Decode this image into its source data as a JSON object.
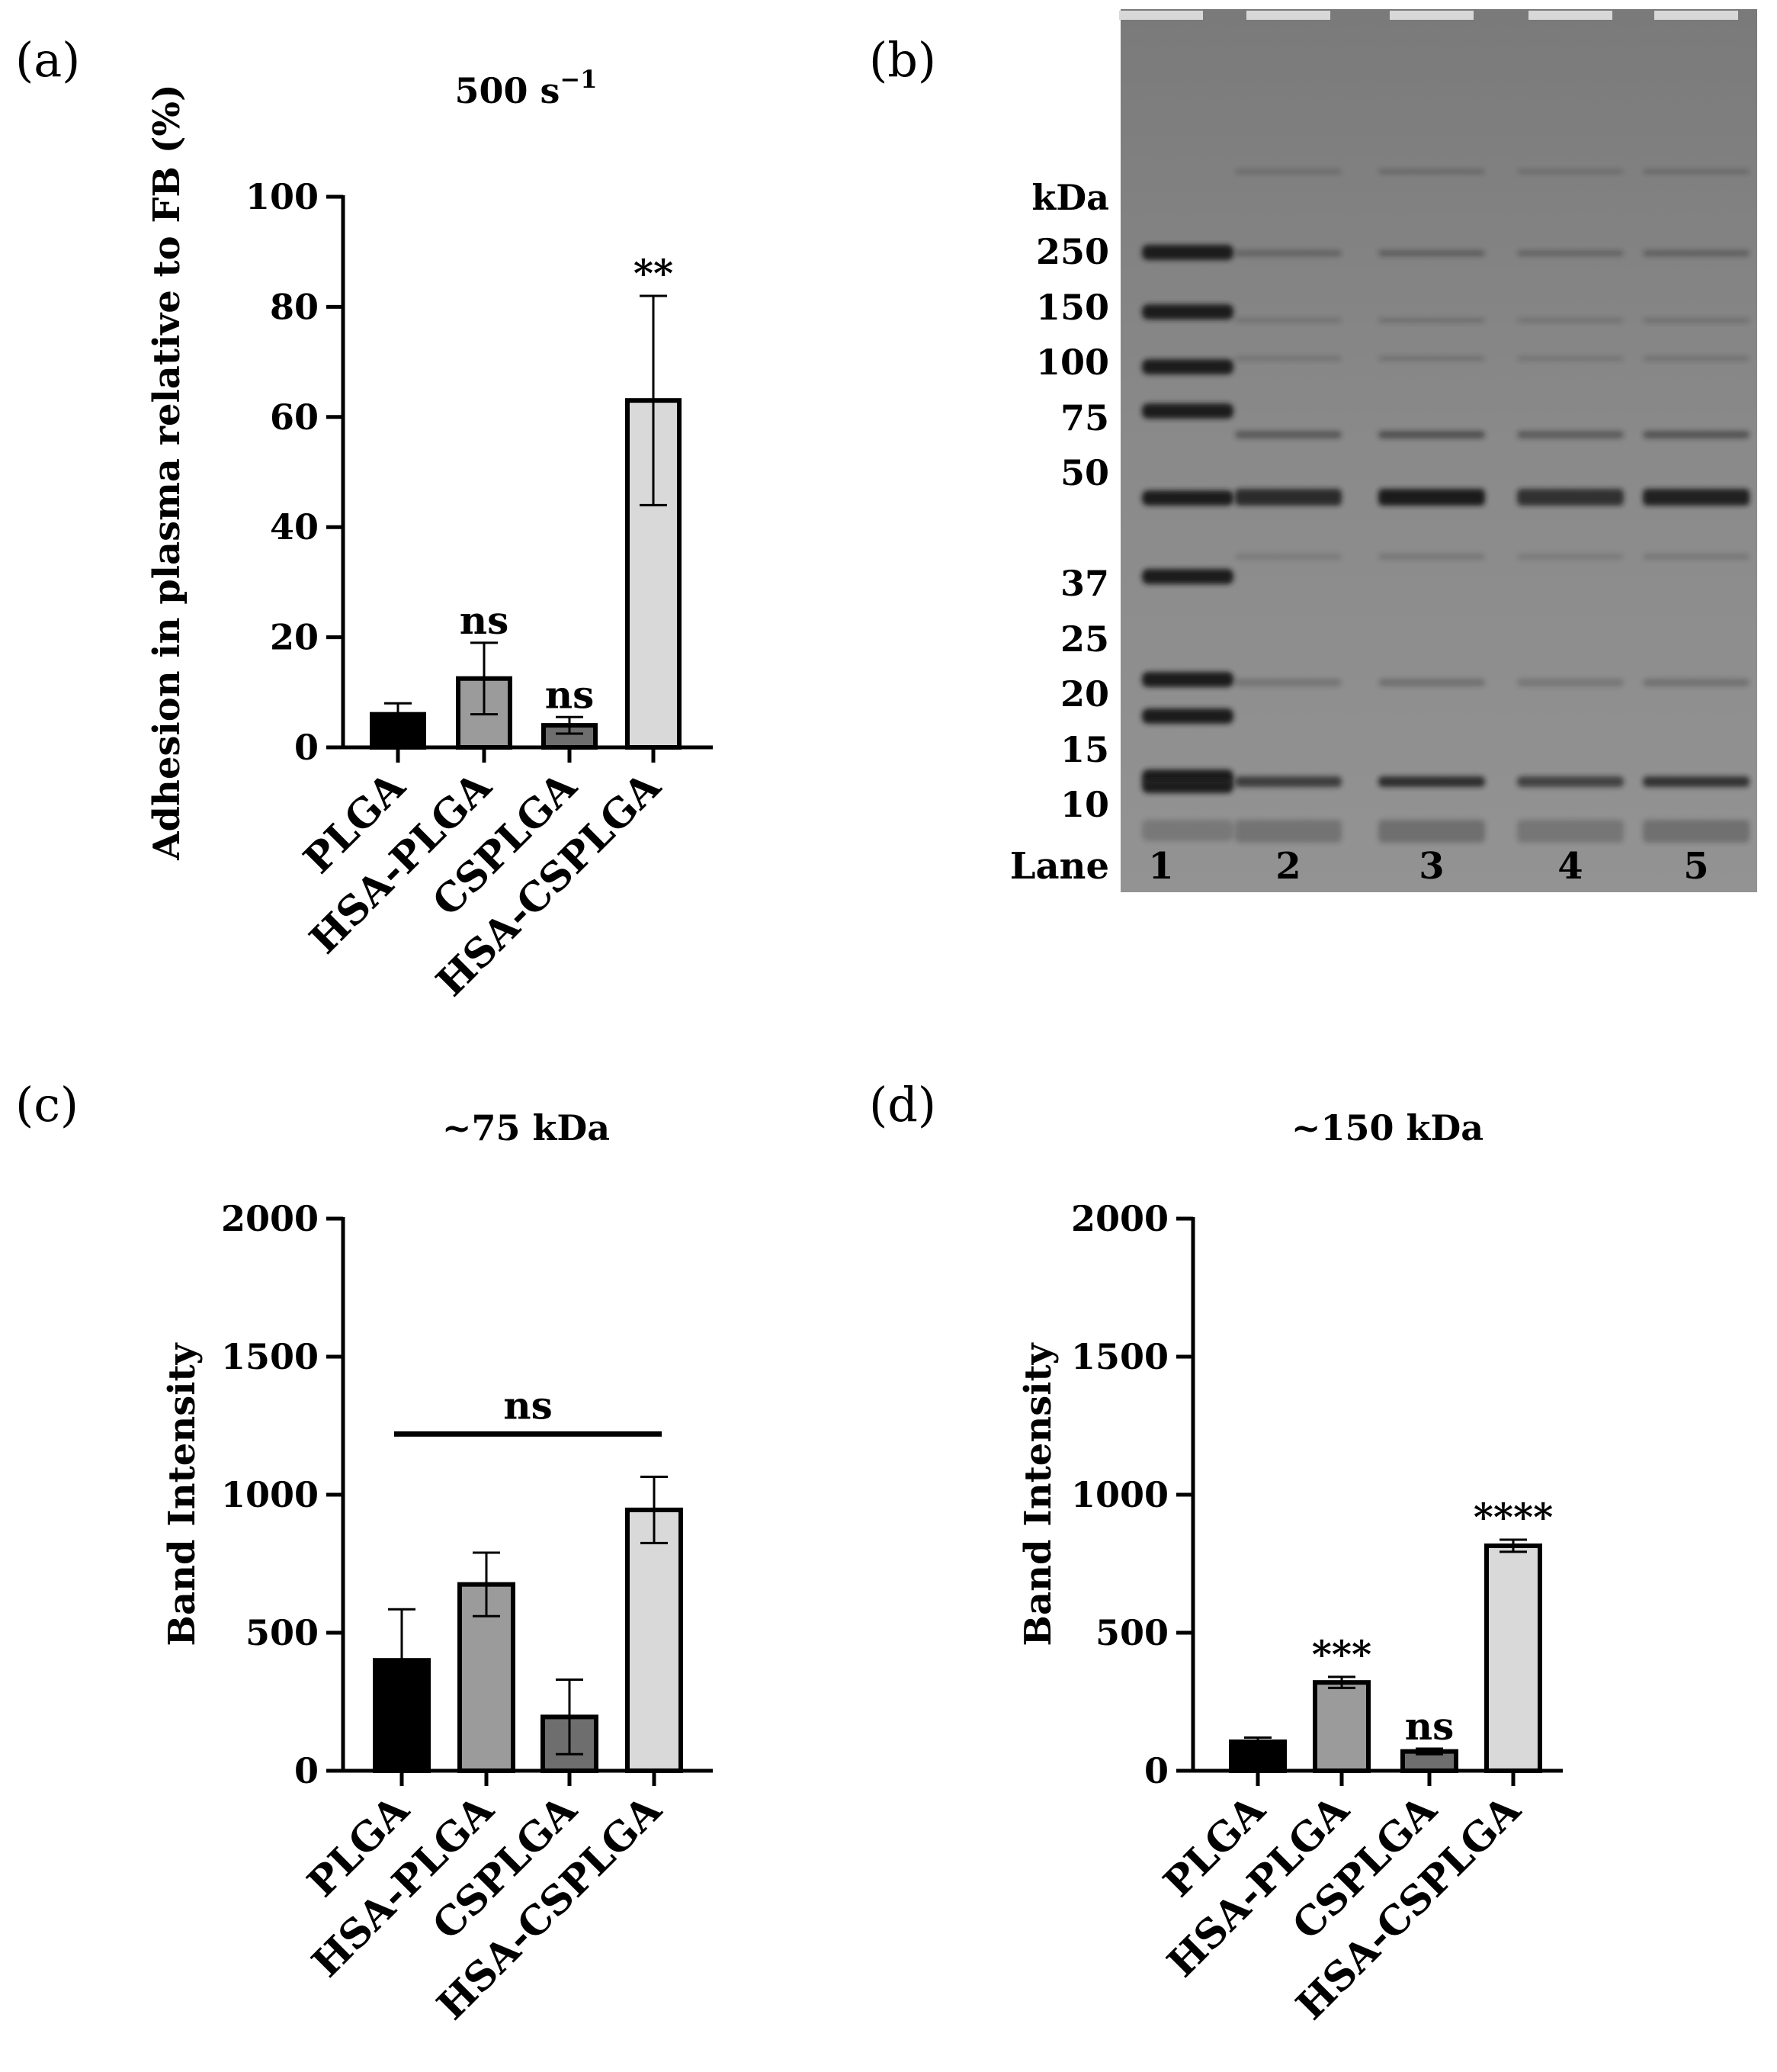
{
  "chart_data": [
    {
      "panel": "(a)",
      "type": "bar",
      "title": "500 s",
      "title_sup": "−1",
      "ylabel": "Adhesion in plasma relative to FB (%)",
      "ylim": [
        0,
        100
      ],
      "yticks": [
        0,
        20,
        40,
        60,
        80,
        100
      ],
      "categories": [
        "PLGA",
        "HSA-PLGA",
        "CSPLGA",
        "HSA-CSPLGA"
      ],
      "values": [
        6,
        12.5,
        4,
        63
      ],
      "errors": [
        2,
        6.5,
        1.5,
        19
      ],
      "colors": [
        "#000000",
        "#9b9b9b",
        "#6e6e6e",
        "#d9d9d9"
      ],
      "significance": [
        "",
        "ns",
        "ns",
        "**"
      ]
    },
    {
      "panel": "(c)",
      "type": "bar",
      "title": "~75 kDa",
      "ylabel": "Band Intensity",
      "ylim": [
        0,
        2000
      ],
      "yticks": [
        0,
        500,
        1000,
        1500,
        2000
      ],
      "categories": [
        "PLGA",
        "HSA-PLGA",
        "CSPLGA",
        "HSA-CSPLGA"
      ],
      "values": [
        400,
        675,
        195,
        945
      ],
      "errors": [
        185,
        115,
        135,
        120
      ],
      "colors": [
        "#000000",
        "#9b9b9b",
        "#6e6e6e",
        "#d9d9d9"
      ],
      "significance": [
        "",
        "",
        "",
        ""
      ],
      "bracket": {
        "label": "ns",
        "from": 0,
        "to": 3,
        "y": 1220
      }
    },
    {
      "panel": "(d)",
      "type": "bar",
      "title": "~150 kDa",
      "ylabel": "Band Intensity",
      "ylim": [
        0,
        2000
      ],
      "yticks": [
        0,
        500,
        1000,
        1500,
        2000
      ],
      "categories": [
        "PLGA",
        "HSA-PLGA",
        "CSPLGA",
        "HSA-CSPLGA"
      ],
      "values": [
        105,
        320,
        70,
        815
      ],
      "errors": [
        15,
        20,
        10,
        22
      ],
      "colors": [
        "#000000",
        "#9b9b9b",
        "#6e6e6e",
        "#d9d9d9"
      ],
      "significance": [
        "",
        "***",
        "ns",
        "****"
      ]
    }
  ],
  "gel": {
    "panel": "(b)",
    "unit_label": "kDa",
    "lane_label": "Lane",
    "markers": [
      {
        "label": "250",
        "band": true
      },
      {
        "label": "150",
        "band": true
      },
      {
        "label": "100",
        "band": true
      },
      {
        "label": "75",
        "band": true
      },
      {
        "label": "50",
        "band": true
      },
      {
        "label": "37",
        "band": true
      },
      {
        "label": "25",
        "band": false
      },
      {
        "label": "20",
        "band": true
      },
      {
        "label": "15",
        "band": true
      },
      {
        "label": "10",
        "band": true
      }
    ],
    "lanes": [
      "1",
      "2",
      "3",
      "4",
      "5"
    ]
  }
}
